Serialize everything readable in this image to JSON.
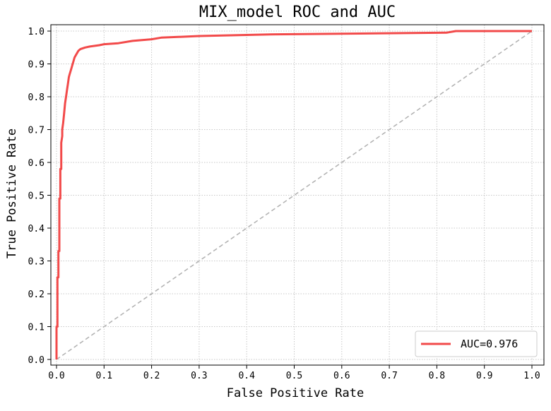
{
  "chart_data": {
    "type": "line",
    "title": "MIX_model ROC and AUC",
    "xlabel": "False Positive Rate",
    "ylabel": "True Positive Rate",
    "xlim": [
      0.0,
      1.0
    ],
    "ylim": [
      0.0,
      1.0
    ],
    "xticks": [
      "0.0",
      "0.1",
      "0.2",
      "0.3",
      "0.4",
      "0.5",
      "0.6",
      "0.7",
      "0.8",
      "0.9",
      "1.0"
    ],
    "yticks": [
      "0.0",
      "0.1",
      "0.2",
      "0.3",
      "0.4",
      "0.5",
      "0.6",
      "0.7",
      "0.8",
      "0.9",
      "1.0"
    ],
    "grid": true,
    "legend": {
      "location": "lower-right",
      "entries": [
        "AUC=0.976"
      ]
    },
    "series": [
      {
        "name": "AUC=0.976",
        "color": "#f24a4a",
        "x": [
          0.0,
          0.0,
          0.002,
          0.002,
          0.004,
          0.004,
          0.006,
          0.006,
          0.008,
          0.008,
          0.01,
          0.01,
          0.012,
          0.012,
          0.014,
          0.016,
          0.018,
          0.02,
          0.022,
          0.024,
          0.026,
          0.028,
          0.03,
          0.034,
          0.038,
          0.042,
          0.046,
          0.05,
          0.06,
          0.07,
          0.09,
          0.1,
          0.13,
          0.16,
          0.2,
          0.22,
          0.3,
          0.46,
          0.82,
          0.84,
          1.0
        ],
        "y": [
          0.0,
          0.1,
          0.1,
          0.25,
          0.25,
          0.33,
          0.33,
          0.49,
          0.49,
          0.58,
          0.58,
          0.66,
          0.68,
          0.7,
          0.72,
          0.75,
          0.78,
          0.8,
          0.82,
          0.84,
          0.86,
          0.87,
          0.88,
          0.9,
          0.92,
          0.93,
          0.94,
          0.945,
          0.95,
          0.953,
          0.957,
          0.96,
          0.963,
          0.97,
          0.975,
          0.98,
          0.985,
          0.99,
          0.995,
          1.0,
          1.0
        ]
      },
      {
        "name": "",
        "color": "#b0b0b0",
        "style": "dashed",
        "x": [
          0.0,
          1.0
        ],
        "y": [
          0.0,
          1.0
        ]
      }
    ]
  }
}
